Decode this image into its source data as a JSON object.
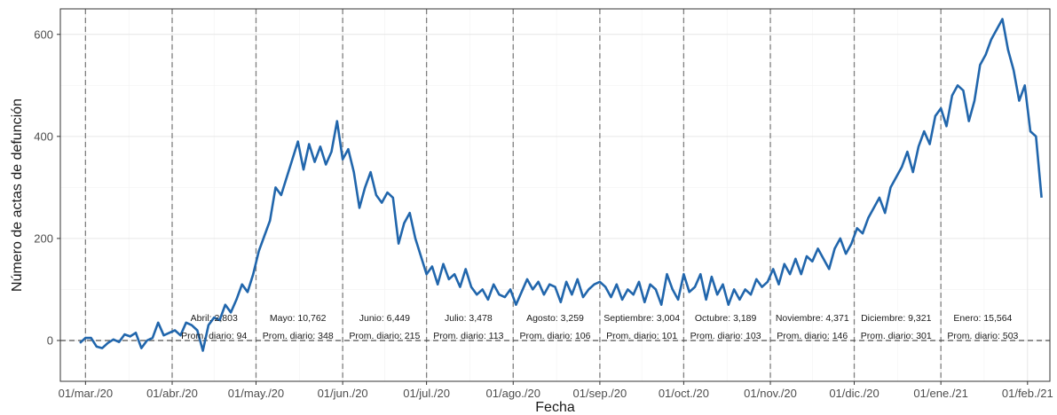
{
  "chart_data": {
    "type": "line",
    "title": "",
    "xlabel": "Fecha",
    "ylabel": "Número de actas de defunción",
    "ylim": [
      -80,
      650
    ],
    "xlim": [
      "2020-02-21",
      "2021-02-09"
    ],
    "y_ticks": [
      0,
      200,
      400,
      600
    ],
    "y_tick_labels": [
      "0",
      "200",
      "400",
      "600"
    ],
    "x_ticks": [
      "2020-03-01",
      "2020-04-01",
      "2020-05-01",
      "2020-06-01",
      "2020-07-01",
      "2020-08-01",
      "2020-09-01",
      "2020-10-01",
      "2020-11-01",
      "2020-12-01",
      "2021-01-01",
      "2021-02-01"
    ],
    "x_tick_labels": [
      "01/mar./20",
      "01/abr./20",
      "01/may./20",
      "01/jun./20",
      "01/jul./20",
      "01/ago./20",
      "01/sep./20",
      "01/oct./20",
      "01/nov./20",
      "01/dic./20",
      "01/ene./21",
      "01/feb./21"
    ],
    "month_lines": [
      "2020-03-01",
      "2020-04-01",
      "2020-05-01",
      "2020-06-01",
      "2020-07-01",
      "2020-08-01",
      "2020-09-01",
      "2020-10-01",
      "2020-11-01",
      "2020-12-01",
      "2021-01-01"
    ],
    "zero_line": 0,
    "grid": true,
    "line_color": "#2166ac",
    "series": [
      {
        "x_start": "2020-02-28",
        "points": [
          [
            "2020-02-28",
            -5
          ],
          [
            "2020-03-01",
            5
          ],
          [
            "2020-03-03",
            5
          ],
          [
            "2020-03-05",
            -12
          ],
          [
            "2020-03-07",
            -15
          ],
          [
            "2020-03-09",
            -5
          ],
          [
            "2020-03-11",
            2
          ],
          [
            "2020-03-13",
            -3
          ],
          [
            "2020-03-15",
            12
          ],
          [
            "2020-03-17",
            8
          ],
          [
            "2020-03-19",
            15
          ],
          [
            "2020-03-21",
            -15
          ],
          [
            "2020-03-23",
            0
          ],
          [
            "2020-03-25",
            5
          ],
          [
            "2020-03-27",
            35
          ],
          [
            "2020-03-29",
            10
          ],
          [
            "2020-03-31",
            15
          ],
          [
            "2020-04-02",
            20
          ],
          [
            "2020-04-04",
            10
          ],
          [
            "2020-04-06",
            35
          ],
          [
            "2020-04-08",
            30
          ],
          [
            "2020-04-10",
            20
          ],
          [
            "2020-04-12",
            -20
          ],
          [
            "2020-04-14",
            30
          ],
          [
            "2020-04-16",
            45
          ],
          [
            "2020-04-18",
            40
          ],
          [
            "2020-04-20",
            70
          ],
          [
            "2020-04-22",
            55
          ],
          [
            "2020-04-24",
            80
          ],
          [
            "2020-04-26",
            110
          ],
          [
            "2020-04-28",
            95
          ],
          [
            "2020-04-30",
            130
          ],
          [
            "2020-05-02",
            175
          ],
          [
            "2020-05-04",
            205
          ],
          [
            "2020-05-06",
            235
          ],
          [
            "2020-05-08",
            300
          ],
          [
            "2020-05-10",
            285
          ],
          [
            "2020-05-12",
            320
          ],
          [
            "2020-05-14",
            355
          ],
          [
            "2020-05-16",
            390
          ],
          [
            "2020-05-18",
            335
          ],
          [
            "2020-05-20",
            385
          ],
          [
            "2020-05-22",
            350
          ],
          [
            "2020-05-24",
            380
          ],
          [
            "2020-05-26",
            345
          ],
          [
            "2020-05-28",
            370
          ],
          [
            "2020-05-30",
            430
          ],
          [
            "2020-06-01",
            355
          ],
          [
            "2020-06-03",
            375
          ],
          [
            "2020-06-05",
            330
          ],
          [
            "2020-06-07",
            260
          ],
          [
            "2020-06-09",
            300
          ],
          [
            "2020-06-11",
            330
          ],
          [
            "2020-06-13",
            285
          ],
          [
            "2020-06-15",
            270
          ],
          [
            "2020-06-17",
            290
          ],
          [
            "2020-06-19",
            280
          ],
          [
            "2020-06-21",
            190
          ],
          [
            "2020-06-23",
            230
          ],
          [
            "2020-06-25",
            250
          ],
          [
            "2020-06-27",
            200
          ],
          [
            "2020-06-29",
            165
          ],
          [
            "2020-07-01",
            130
          ],
          [
            "2020-07-03",
            145
          ],
          [
            "2020-07-05",
            110
          ],
          [
            "2020-07-07",
            150
          ],
          [
            "2020-07-09",
            120
          ],
          [
            "2020-07-11",
            130
          ],
          [
            "2020-07-13",
            105
          ],
          [
            "2020-07-15",
            140
          ],
          [
            "2020-07-17",
            105
          ],
          [
            "2020-07-19",
            90
          ],
          [
            "2020-07-21",
            100
          ],
          [
            "2020-07-23",
            80
          ],
          [
            "2020-07-25",
            110
          ],
          [
            "2020-07-27",
            90
          ],
          [
            "2020-07-29",
            85
          ],
          [
            "2020-07-31",
            100
          ],
          [
            "2020-08-02",
            70
          ],
          [
            "2020-08-04",
            95
          ],
          [
            "2020-08-06",
            120
          ],
          [
            "2020-08-08",
            100
          ],
          [
            "2020-08-10",
            115
          ],
          [
            "2020-08-12",
            90
          ],
          [
            "2020-08-14",
            110
          ],
          [
            "2020-08-16",
            105
          ],
          [
            "2020-08-18",
            75
          ],
          [
            "2020-08-20",
            115
          ],
          [
            "2020-08-22",
            90
          ],
          [
            "2020-08-24",
            120
          ],
          [
            "2020-08-26",
            85
          ],
          [
            "2020-08-28",
            100
          ],
          [
            "2020-08-30",
            110
          ],
          [
            "2020-09-01",
            115
          ],
          [
            "2020-09-03",
            105
          ],
          [
            "2020-09-05",
            85
          ],
          [
            "2020-09-07",
            110
          ],
          [
            "2020-09-09",
            80
          ],
          [
            "2020-09-11",
            100
          ],
          [
            "2020-09-13",
            90
          ],
          [
            "2020-09-15",
            115
          ],
          [
            "2020-09-17",
            75
          ],
          [
            "2020-09-19",
            110
          ],
          [
            "2020-09-21",
            100
          ],
          [
            "2020-09-23",
            70
          ],
          [
            "2020-09-25",
            130
          ],
          [
            "2020-09-27",
            100
          ],
          [
            "2020-09-29",
            80
          ],
          [
            "2020-10-01",
            130
          ],
          [
            "2020-10-03",
            95
          ],
          [
            "2020-10-05",
            105
          ],
          [
            "2020-10-07",
            130
          ],
          [
            "2020-10-09",
            80
          ],
          [
            "2020-10-11",
            125
          ],
          [
            "2020-10-13",
            90
          ],
          [
            "2020-10-15",
            110
          ],
          [
            "2020-10-17",
            70
          ],
          [
            "2020-10-19",
            100
          ],
          [
            "2020-10-21",
            80
          ],
          [
            "2020-10-23",
            100
          ],
          [
            "2020-10-25",
            90
          ],
          [
            "2020-10-27",
            120
          ],
          [
            "2020-10-29",
            105
          ],
          [
            "2020-10-31",
            115
          ],
          [
            "2020-11-02",
            140
          ],
          [
            "2020-11-04",
            110
          ],
          [
            "2020-11-06",
            150
          ],
          [
            "2020-11-08",
            130
          ],
          [
            "2020-11-10",
            160
          ],
          [
            "2020-11-12",
            130
          ],
          [
            "2020-11-14",
            165
          ],
          [
            "2020-11-16",
            155
          ],
          [
            "2020-11-18",
            180
          ],
          [
            "2020-11-20",
            160
          ],
          [
            "2020-11-22",
            140
          ],
          [
            "2020-11-24",
            180
          ],
          [
            "2020-11-26",
            200
          ],
          [
            "2020-11-28",
            170
          ],
          [
            "2020-11-30",
            190
          ],
          [
            "2020-12-02",
            220
          ],
          [
            "2020-12-04",
            210
          ],
          [
            "2020-12-06",
            240
          ],
          [
            "2020-12-08",
            260
          ],
          [
            "2020-12-10",
            280
          ],
          [
            "2020-12-12",
            250
          ],
          [
            "2020-12-14",
            300
          ],
          [
            "2020-12-16",
            320
          ],
          [
            "2020-12-18",
            340
          ],
          [
            "2020-12-20",
            370
          ],
          [
            "2020-12-22",
            330
          ],
          [
            "2020-12-24",
            380
          ],
          [
            "2020-12-26",
            410
          ],
          [
            "2020-12-28",
            385
          ],
          [
            "2020-12-30",
            440
          ],
          [
            "2021-01-01",
            455
          ],
          [
            "2021-01-03",
            420
          ],
          [
            "2021-01-05",
            480
          ],
          [
            "2021-01-07",
            500
          ],
          [
            "2021-01-09",
            490
          ],
          [
            "2021-01-11",
            430
          ],
          [
            "2021-01-13",
            470
          ],
          [
            "2021-01-15",
            540
          ],
          [
            "2021-01-17",
            560
          ],
          [
            "2021-01-19",
            590
          ],
          [
            "2021-01-21",
            610
          ],
          [
            "2021-01-23",
            630
          ],
          [
            "2021-01-25",
            570
          ],
          [
            "2021-01-27",
            530
          ],
          [
            "2021-01-29",
            470
          ],
          [
            "2021-01-31",
            500
          ],
          [
            "2021-02-02",
            410
          ],
          [
            "2021-02-04",
            400
          ],
          [
            "2021-02-06",
            280
          ]
        ]
      }
    ],
    "annotations": [
      {
        "date": "2020-04-16",
        "line1": "Abril: 2,803",
        "line2": "Prom. diario: 94"
      },
      {
        "date": "2020-05-16",
        "line1": "Mayo: 10,762",
        "line2": "Prom. diario: 348"
      },
      {
        "date": "2020-06-16",
        "line1": "Junio: 6,449",
        "line2": "Prom. diario: 215"
      },
      {
        "date": "2020-07-16",
        "line1": "Julio: 3,478",
        "line2": "Prom. diario: 113"
      },
      {
        "date": "2020-08-16",
        "line1": "Agosto: 3,259",
        "line2": "Prom. diario: 106"
      },
      {
        "date": "2020-09-16",
        "line1": "Septiembre: 3,004",
        "line2": "Prom. diario: 101"
      },
      {
        "date": "2020-10-16",
        "line1": "Octubre: 3,189",
        "line2": "Prom. diario: 103"
      },
      {
        "date": "2020-11-16",
        "line1": "Noviembre: 4,371",
        "line2": "Prom. diario: 146"
      },
      {
        "date": "2020-12-16",
        "line1": "Diciembre: 9,321",
        "line2": "Prom. diario: 301"
      },
      {
        "date": "2021-01-16",
        "line1": "Enero: 15,564",
        "line2": "Prom. diario: 503"
      }
    ]
  }
}
